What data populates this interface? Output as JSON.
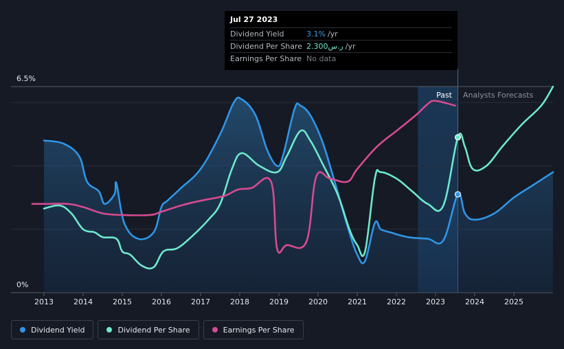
{
  "tooltip": {
    "date": "Jul 27 2023",
    "rows": [
      {
        "label": "Dividend Yield",
        "value": "3.1%",
        "unit": "/yr",
        "color": "#3b9ee8"
      },
      {
        "label": "Dividend Per Share",
        "value": "2.300ر.س",
        "unit": "/yr",
        "color": "#6ee8cc"
      },
      {
        "label": "Earnings Per Share",
        "value": "No data",
        "unit": "",
        "color": "#7a7f89"
      }
    ]
  },
  "regions": {
    "past": "Past",
    "forecast": "Analysts Forecasts"
  },
  "legend": [
    {
      "label": "Dividend Yield",
      "color": "#2f95e6"
    },
    {
      "label": "Dividend Per Share",
      "color": "#6ee8cc"
    },
    {
      "label": "Earnings Per Share",
      "color": "#d64b90"
    }
  ],
  "chart_data": {
    "type": "line",
    "y_axis": {
      "min_label": "0%",
      "max_label": "6.5%",
      "ylim": [
        0,
        6.5
      ],
      "unit": "%"
    },
    "x_ticks": [
      "2013",
      "2014",
      "2015",
      "2016",
      "2017",
      "2018",
      "2019",
      "2020",
      "2021",
      "2022",
      "2023",
      "2024",
      "2025"
    ],
    "xlim": [
      2012.0,
      2026.0
    ],
    "past_region": [
      2022.55,
      2023.57
    ],
    "series": [
      {
        "name": "Dividend Yield",
        "key": "yield",
        "color": "#2f95e6",
        "area": true,
        "points": [
          [
            2013.0,
            4.8
          ],
          [
            2013.5,
            4.7
          ],
          [
            2013.9,
            4.3
          ],
          [
            2014.1,
            3.5
          ],
          [
            2014.4,
            3.2
          ],
          [
            2014.55,
            2.8
          ],
          [
            2014.8,
            3.1
          ],
          [
            2014.85,
            3.45
          ],
          [
            2015.05,
            2.2
          ],
          [
            2015.4,
            1.7
          ],
          [
            2015.8,
            1.9
          ],
          [
            2016.0,
            2.7
          ],
          [
            2016.15,
            2.9
          ],
          [
            2016.5,
            3.3
          ],
          [
            2017.0,
            3.9
          ],
          [
            2017.5,
            5.0
          ],
          [
            2017.85,
            6.0
          ],
          [
            2018.05,
            6.1
          ],
          [
            2018.4,
            5.6
          ],
          [
            2018.7,
            4.5
          ],
          [
            2018.95,
            4.0
          ],
          [
            2019.1,
            4.3
          ],
          [
            2019.4,
            5.8
          ],
          [
            2019.55,
            5.9
          ],
          [
            2019.8,
            5.6
          ],
          [
            2020.1,
            4.8
          ],
          [
            2020.4,
            3.6
          ],
          [
            2020.75,
            2.1
          ],
          [
            2021.0,
            1.2
          ],
          [
            2021.2,
            1.0
          ],
          [
            2021.45,
            2.2
          ],
          [
            2021.6,
            2.0
          ],
          [
            2021.85,
            1.9
          ],
          [
            2022.3,
            1.75
          ],
          [
            2022.8,
            1.7
          ],
          [
            2023.2,
            1.65
          ],
          [
            2023.57,
            3.1
          ],
          [
            2023.75,
            2.5
          ],
          [
            2024.0,
            2.3
          ],
          [
            2024.5,
            2.5
          ],
          [
            2025.0,
            3.0
          ],
          [
            2025.5,
            3.4
          ],
          [
            2026.0,
            3.8
          ]
        ]
      },
      {
        "name": "Dividend Per Share",
        "key": "dps",
        "color": "#6ee8cc",
        "area": false,
        "points": [
          [
            2013.0,
            2.65
          ],
          [
            2013.4,
            2.75
          ],
          [
            2013.7,
            2.5
          ],
          [
            2014.0,
            2.0
          ],
          [
            2014.3,
            1.9
          ],
          [
            2014.5,
            1.75
          ],
          [
            2014.85,
            1.7
          ],
          [
            2015.0,
            1.3
          ],
          [
            2015.2,
            1.2
          ],
          [
            2015.5,
            0.85
          ],
          [
            2015.8,
            0.8
          ],
          [
            2016.05,
            1.3
          ],
          [
            2016.4,
            1.4
          ],
          [
            2016.8,
            1.8
          ],
          [
            2017.2,
            2.3
          ],
          [
            2017.5,
            2.8
          ],
          [
            2017.8,
            3.9
          ],
          [
            2018.05,
            4.4
          ],
          [
            2018.5,
            4.0
          ],
          [
            2018.95,
            3.8
          ],
          [
            2019.2,
            4.3
          ],
          [
            2019.55,
            5.1
          ],
          [
            2019.8,
            4.8
          ],
          [
            2020.1,
            4.1
          ],
          [
            2020.5,
            3.1
          ],
          [
            2020.8,
            2.0
          ],
          [
            2021.0,
            1.5
          ],
          [
            2021.2,
            1.3
          ],
          [
            2021.45,
            3.6
          ],
          [
            2021.6,
            3.8
          ],
          [
            2022.0,
            3.6
          ],
          [
            2022.4,
            3.2
          ],
          [
            2022.8,
            2.8
          ],
          [
            2023.2,
            2.75
          ],
          [
            2023.57,
            4.9
          ],
          [
            2023.75,
            4.6
          ],
          [
            2023.95,
            3.9
          ],
          [
            2024.3,
            4.0
          ],
          [
            2024.7,
            4.6
          ],
          [
            2025.2,
            5.3
          ],
          [
            2025.7,
            5.9
          ],
          [
            2026.0,
            6.5
          ]
        ]
      },
      {
        "name": "Earnings Per Share",
        "key": "eps",
        "color": "#d64b90",
        "area": false,
        "points": [
          [
            2012.7,
            2.8
          ],
          [
            2013.0,
            2.8
          ],
          [
            2013.6,
            2.8
          ],
          [
            2014.0,
            2.7
          ],
          [
            2014.5,
            2.5
          ],
          [
            2015.0,
            2.45
          ],
          [
            2015.7,
            2.45
          ],
          [
            2016.0,
            2.55
          ],
          [
            2016.5,
            2.75
          ],
          [
            2017.0,
            2.9
          ],
          [
            2017.6,
            3.05
          ],
          [
            2017.95,
            3.25
          ],
          [
            2018.3,
            3.3
          ],
          [
            2018.8,
            3.5
          ],
          [
            2018.95,
            1.4
          ],
          [
            2019.2,
            1.5
          ],
          [
            2019.7,
            1.6
          ],
          [
            2019.95,
            3.65
          ],
          [
            2020.3,
            3.6
          ],
          [
            2020.75,
            3.5
          ],
          [
            2021.0,
            3.9
          ],
          [
            2021.5,
            4.6
          ],
          [
            2022.0,
            5.1
          ],
          [
            2022.5,
            5.6
          ],
          [
            2022.8,
            5.95
          ],
          [
            2023.0,
            6.05
          ],
          [
            2023.5,
            5.9
          ]
        ]
      }
    ],
    "markers": [
      {
        "series": "yield",
        "x": 2023.57,
        "y": 3.1
      },
      {
        "series": "dps",
        "x": 2023.57,
        "y": 4.9
      }
    ]
  }
}
